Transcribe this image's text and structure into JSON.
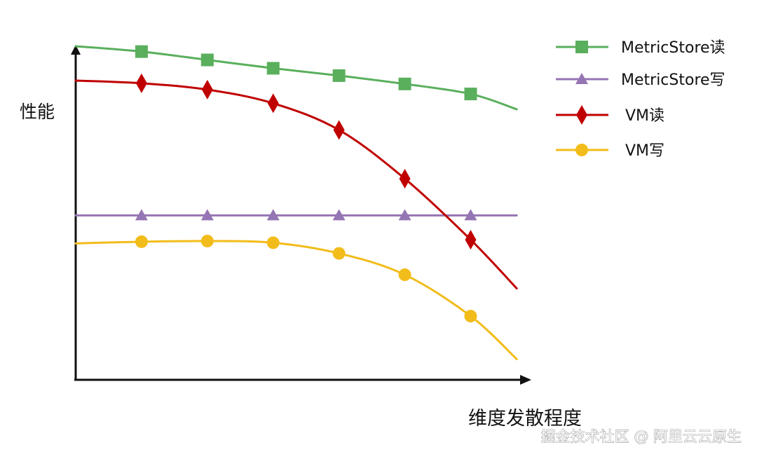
{
  "chart_data": {
    "type": "line",
    "title": "",
    "ylabel": "性能",
    "xlabel": "维度发散程度",
    "x": [
      0,
      1,
      2,
      3,
      4,
      5,
      6,
      6.7
    ],
    "xlim": [
      0,
      6.9
    ],
    "ylim": [
      0,
      100
    ],
    "grid": false,
    "legend_position": "top-right",
    "series": [
      {
        "name": "MetricStore读",
        "color": "#5aaf5c",
        "marker": "square",
        "values": [
          100,
          98.4,
          95.9,
          93.4,
          91.2,
          88.7,
          85.7,
          81.1
        ],
        "marker_indices": [
          1,
          2,
          3,
          4,
          5,
          6
        ]
      },
      {
        "name": "MetricStore写",
        "color": "#9575b3",
        "marker": "triangle",
        "values": [
          49.3,
          49.3,
          49.3,
          49.3,
          49.3,
          49.3,
          49.3,
          49.3
        ],
        "marker_indices": [
          1,
          2,
          3,
          4,
          5,
          6
        ]
      },
      {
        "name": "VM读",
        "color": "#c00000",
        "marker": "diamond",
        "values": [
          89.7,
          88.9,
          87.0,
          82.9,
          74.9,
          60.3,
          42.0,
          27.4
        ],
        "marker_indices": [
          1,
          2,
          3,
          4,
          5,
          6
        ]
      },
      {
        "name": "VM写",
        "color": "#f2bc1a",
        "marker": "circle",
        "values": [
          40.9,
          41.4,
          41.6,
          41.1,
          37.9,
          31.5,
          19.1,
          6.2
        ],
        "marker_indices": [
          1,
          2,
          3,
          4,
          5,
          6
        ]
      }
    ]
  },
  "watermark": "掘金技术社区 @ 阿里云云原生"
}
